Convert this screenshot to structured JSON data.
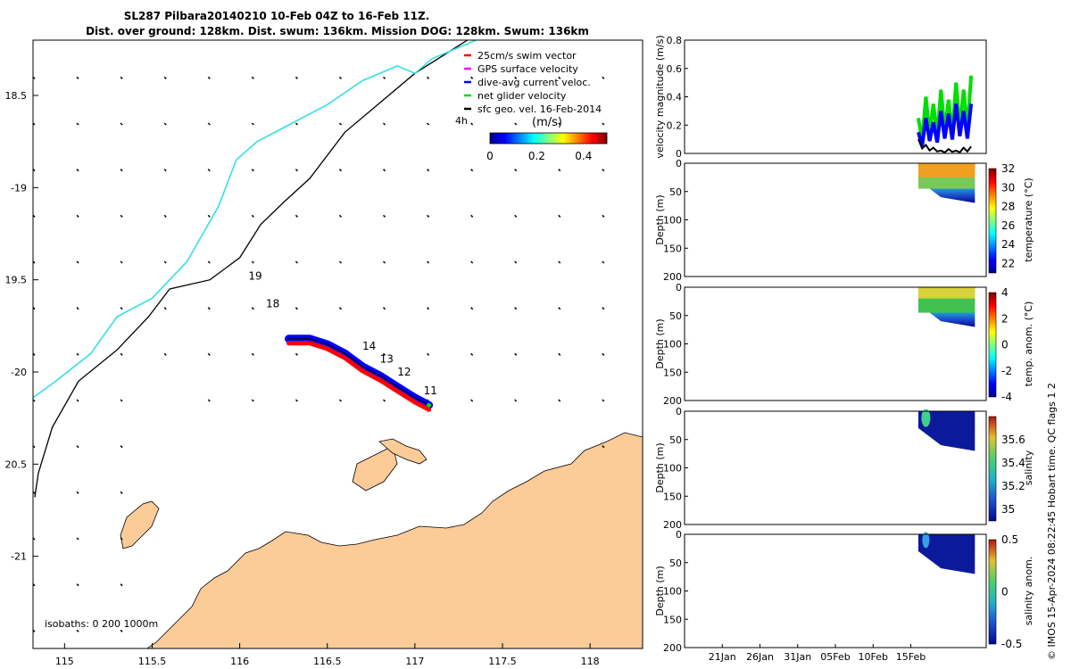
{
  "title_line1": "SL287 Pilbara20140210 10-Feb 04Z to 16-Feb 11Z.",
  "title_line2": "Dist. over ground: 128km. Dist. swum: 136km. Mission DOG: 128km. Swum: 136km",
  "copyright": "© IMOS 15-Apr-2024 08:22:45 Hobart time. QC flags 1  2",
  "chart_data": [
    {
      "type": "map",
      "name": "glider-track-map",
      "xlim": [
        114.82,
        118.3
      ],
      "ylim": [
        -21.5,
        -18.2
      ],
      "x_ticks": [
        {
          "v": 115,
          "label": "115"
        },
        {
          "v": 115.5,
          "label": "115.5"
        },
        {
          "v": 116,
          "label": "116"
        },
        {
          "v": 116.5,
          "label": "116.5"
        },
        {
          "v": 117,
          "label": "117"
        },
        {
          "v": 117.5,
          "label": "117.5"
        },
        {
          "v": 118,
          "label": "118"
        }
      ],
      "y_ticks": [
        {
          "v": -18.5,
          "label": "18.5"
        },
        {
          "v": -19,
          "label": "-19"
        },
        {
          "v": -19.5,
          "label": "19.5"
        },
        {
          "v": -20,
          "label": "-20"
        },
        {
          "v": -20.5,
          "label": "20.5"
        },
        {
          "v": -21,
          "label": "-21"
        }
      ],
      "legend": [
        {
          "label": "25cm/s swim vector",
          "color": "#ff0000"
        },
        {
          "label": "GPS surface velocity",
          "color": "#ff00ff"
        },
        {
          "label": "dive-avg current veloc.",
          "color": "#0000ff"
        },
        {
          "label": "net glider velocity",
          "color": "#00dd00"
        },
        {
          "label": "sfc geo. vel. 16-Feb-2014",
          "color": "#000000"
        }
      ],
      "legend_note": "4h",
      "colorbar_title": "(m/s)",
      "colorbar_range": [
        0,
        0.5
      ],
      "colorbar_ticks": [
        {
          "v": 0,
          "label": "0"
        },
        {
          "v": 0.2,
          "label": "0.2"
        },
        {
          "v": 0.4,
          "label": "0.4"
        }
      ],
      "isobath_label": "isobaths: 0   200  1000m",
      "isobaths": {
        "1000m": [
          [
            117.3,
            -18.2
          ],
          [
            117.0,
            -18.38
          ],
          [
            116.6,
            -18.7
          ],
          [
            116.4,
            -18.95
          ],
          [
            116.25,
            -19.08
          ],
          [
            116.12,
            -19.2
          ],
          [
            116.0,
            -19.38
          ],
          [
            115.83,
            -19.5
          ],
          [
            115.6,
            -19.55
          ],
          [
            115.48,
            -19.7
          ],
          [
            115.3,
            -19.88
          ],
          [
            115.08,
            -20.05
          ],
          [
            114.93,
            -20.3
          ],
          [
            114.85,
            -20.55
          ],
          [
            114.83,
            -20.68
          ]
        ],
        "200m": [
          [
            117.35,
            -18.2
          ],
          [
            117.1,
            -18.3
          ],
          [
            117.0,
            -18.38
          ],
          [
            116.9,
            -18.34
          ],
          [
            116.7,
            -18.42
          ],
          [
            116.5,
            -18.55
          ],
          [
            116.3,
            -18.65
          ],
          [
            116.1,
            -18.75
          ],
          [
            115.98,
            -18.85
          ],
          [
            115.88,
            -19.1
          ],
          [
            115.7,
            -19.4
          ],
          [
            115.5,
            -19.6
          ],
          [
            115.3,
            -19.7
          ],
          [
            115.15,
            -19.9
          ],
          [
            114.95,
            -20.05
          ],
          [
            114.82,
            -20.14
          ]
        ]
      },
      "track_positions": [
        [
          116.28,
          -19.82
        ],
        [
          116.4,
          -19.82
        ],
        [
          116.5,
          -19.85
        ],
        [
          116.6,
          -19.9
        ],
        [
          116.7,
          -19.97
        ],
        [
          116.8,
          -20.02
        ],
        [
          116.9,
          -20.08
        ],
        [
          117.0,
          -20.14
        ],
        [
          117.08,
          -20.18
        ]
      ],
      "day_labels": [
        {
          "label": "19",
          "lon": 116.05,
          "lat": -19.5
        },
        {
          "label": "18",
          "lon": 116.15,
          "lat": -19.65
        },
        {
          "label": "14",
          "lon": 116.7,
          "lat": -19.88
        },
        {
          "label": "13",
          "lon": 116.8,
          "lat": -19.95
        },
        {
          "label": "12",
          "lon": 116.9,
          "lat": -20.02
        },
        {
          "label": "11",
          "lon": 117.05,
          "lat": -20.12
        }
      ]
    },
    {
      "type": "line",
      "name": "velocity-magnitude",
      "ylabel": "velocity magnitude (m/s)",
      "ylim": [
        0,
        0.8
      ],
      "xlim_days": [
        0,
        40
      ],
      "y_ticks": [
        {
          "v": 0,
          "label": "0"
        },
        {
          "v": 0.2,
          "label": "0.2"
        },
        {
          "v": 0.4,
          "label": "0.4"
        },
        {
          "v": 0.6,
          "label": "0.6"
        },
        {
          "v": 0.8,
          "label": "0.8"
        }
      ],
      "series": [
        {
          "name": "net glider velocity",
          "color": "#00dd00",
          "x_days": [
            31,
            32,
            33,
            34,
            35,
            36,
            37,
            38
          ],
          "values": [
            0.25,
            0.4,
            0.35,
            0.45,
            0.38,
            0.5,
            0.45,
            0.55
          ]
        },
        {
          "name": "dive-avg current",
          "color": "#0000ff",
          "x_days": [
            31,
            32,
            33,
            34,
            35,
            36,
            37,
            38
          ],
          "values": [
            0.15,
            0.25,
            0.22,
            0.3,
            0.28,
            0.35,
            0.3,
            0.35
          ]
        },
        {
          "name": "sfc geo. vel.",
          "color": "#000000",
          "x_days": [
            31,
            32,
            33,
            34,
            35,
            36,
            37,
            38
          ],
          "values": [
            0.1,
            0.06,
            0.04,
            0.02,
            0.03,
            0.02,
            0.04,
            0.05
          ]
        }
      ]
    },
    {
      "type": "heatmap",
      "name": "temperature-section",
      "ylabel": "Depth (m)",
      "ylim": [
        0,
        200
      ],
      "colorbar_label": "temperature (°C)",
      "colorbar_range": [
        21,
        32
      ],
      "colorbar_ticks": [
        {
          "v": 32,
          "label": "32"
        },
        {
          "v": 30,
          "label": "30"
        },
        {
          "v": 28,
          "label": "28"
        },
        {
          "v": 26,
          "label": "26"
        },
        {
          "v": 24,
          "label": "24"
        },
        {
          "v": 22,
          "label": "22"
        }
      ],
      "y_ticks": [
        {
          "v": 0,
          "label": "0"
        },
        {
          "v": 50,
          "label": "50"
        },
        {
          "v": 100,
          "label": "100"
        },
        {
          "v": 150,
          "label": "150"
        },
        {
          "v": 200,
          "label": "200"
        }
      ]
    },
    {
      "type": "heatmap",
      "name": "temperature-anomaly-section",
      "ylabel": "Depth (m)",
      "ylim": [
        0,
        200
      ],
      "colorbar_label": "temp. anom. (°C)",
      "colorbar_range": [
        -4,
        4
      ],
      "colorbar_ticks": [
        {
          "v": 4,
          "label": "4"
        },
        {
          "v": 2,
          "label": "2"
        },
        {
          "v": 0,
          "label": "0"
        },
        {
          "v": -2,
          "label": "-2"
        },
        {
          "v": -4,
          "label": "-4"
        }
      ],
      "y_ticks": [
        {
          "v": 0,
          "label": "0"
        },
        {
          "v": 50,
          "label": "50"
        },
        {
          "v": 100,
          "label": "100"
        },
        {
          "v": 150,
          "label": "150"
        },
        {
          "v": 200,
          "label": "200"
        }
      ]
    },
    {
      "type": "heatmap",
      "name": "salinity-section",
      "ylabel": "Depth (m)",
      "ylim": [
        0,
        200
      ],
      "colorbar_label": "salinity",
      "colorbar_range": [
        34.9,
        35.8
      ],
      "colorbar_ticks": [
        {
          "v": 35.6,
          "label": "35.6"
        },
        {
          "v": 35.4,
          "label": "35.4"
        },
        {
          "v": 35.2,
          "label": "35.2"
        },
        {
          "v": 35,
          "label": "35"
        }
      ],
      "y_ticks": [
        {
          "v": 0,
          "label": "0"
        },
        {
          "v": 50,
          "label": "50"
        },
        {
          "v": 100,
          "label": "100"
        },
        {
          "v": 150,
          "label": "150"
        },
        {
          "v": 200,
          "label": "200"
        }
      ]
    },
    {
      "type": "heatmap",
      "name": "salinity-anomaly-section",
      "ylabel": "Depth (m)",
      "ylim": [
        0,
        200
      ],
      "colorbar_label": "salinity anom.",
      "colorbar_range": [
        -0.5,
        0.5
      ],
      "colorbar_ticks": [
        {
          "v": 0.5,
          "label": "0.5"
        },
        {
          "v": 0,
          "label": "0"
        },
        {
          "v": -0.5,
          "label": "-0.5"
        }
      ],
      "y_ticks": [
        {
          "v": 0,
          "label": "0"
        },
        {
          "v": 50,
          "label": "50"
        },
        {
          "v": 100,
          "label": "100"
        },
        {
          "v": 150,
          "label": "150"
        },
        {
          "v": 200,
          "label": "200"
        }
      ],
      "x_ticks": [
        {
          "v": 5,
          "label": "21Jan"
        },
        {
          "v": 10,
          "label": "26Jan"
        },
        {
          "v": 15,
          "label": "31Jan"
        },
        {
          "v": 20,
          "label": "05Feb"
        },
        {
          "v": 25,
          "label": "10Feb"
        },
        {
          "v": 30,
          "label": "15Feb"
        }
      ]
    }
  ]
}
